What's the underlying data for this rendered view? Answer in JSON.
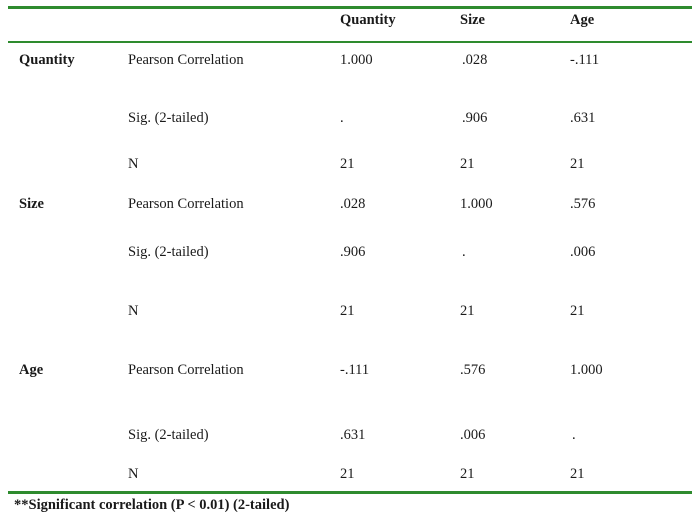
{
  "table": {
    "headers": [
      "Quantity",
      "Size",
      "Age"
    ],
    "rows": [
      {
        "group": "Quantity",
        "stat": "Pearson Correlation",
        "values": [
          "1.000",
          ".028",
          "-.111"
        ]
      },
      {
        "group": "",
        "stat": "Sig. (2-tailed)",
        "values": [
          ".",
          ".906",
          ".631"
        ]
      },
      {
        "group": "",
        "stat": "N",
        "values": [
          "21",
          "21",
          "21"
        ]
      },
      {
        "group": "Size",
        "stat": "Pearson Correlation",
        "values": [
          ".028",
          "1.000",
          ".576"
        ]
      },
      {
        "group": "",
        "stat": "Sig. (2-tailed)",
        "values": [
          ".906",
          ".",
          ".006"
        ]
      },
      {
        "group": "",
        "stat": "N",
        "values": [
          "21",
          "21",
          "21"
        ]
      },
      {
        "group": "Age",
        "stat": "Pearson Correlation",
        "values": [
          "-.111",
          ".576",
          "1.000"
        ]
      },
      {
        "group": "",
        "stat": "Sig. (2-tailed)",
        "values": [
          ".631",
          ".006",
          "."
        ]
      },
      {
        "group": "",
        "stat": "N",
        "values": [
          "21",
          "21",
          "21"
        ]
      }
    ],
    "footnote": "**Significant correlation (P < 0.01) (2-tailed)"
  }
}
